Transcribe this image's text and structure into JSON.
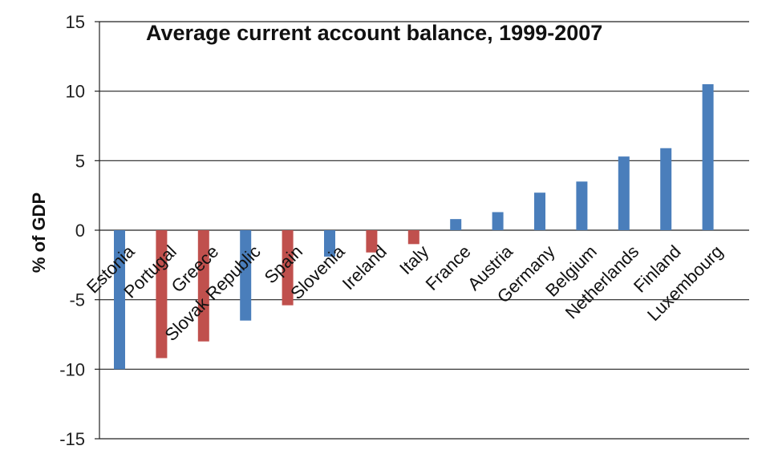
{
  "chart_data": {
    "type": "bar",
    "title": "Average current account balance, 1999-2007",
    "xlabel": "",
    "ylabel": "% of GDP",
    "ylim": [
      -15,
      15
    ],
    "yticks": [
      15,
      10,
      5,
      0,
      -5,
      -10,
      -15
    ],
    "grid": true,
    "categories": [
      "Estonia",
      "Portugal",
      "Greece",
      "Slovak Republic",
      "Spain",
      "Slovenia",
      "Ireland",
      "Italy",
      "France",
      "Austria",
      "Germany",
      "Belgium",
      "Netherlands",
      "Finland",
      "Luxembourg"
    ],
    "values": [
      -10.0,
      -9.2,
      -8.0,
      -6.5,
      -5.4,
      -1.9,
      -1.6,
      -1.0,
      0.8,
      1.3,
      2.7,
      3.5,
      5.3,
      5.9,
      10.5
    ],
    "bar_colors": [
      "#4a7ebb",
      "#c0504d",
      "#c0504d",
      "#4a7ebb",
      "#c0504d",
      "#4a7ebb",
      "#c0504d",
      "#c0504d",
      "#4a7ebb",
      "#4a7ebb",
      "#4a7ebb",
      "#4a7ebb",
      "#4a7ebb",
      "#4a7ebb",
      "#4a7ebb"
    ]
  }
}
